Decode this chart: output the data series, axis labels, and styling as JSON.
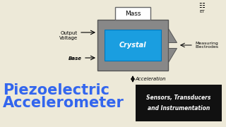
{
  "bg_color": "#ede9d8",
  "title_text1": "Piezoelectric",
  "title_text2": "Accelerometer",
  "title_color": "#3366ee",
  "crystal_color": "#1a9ee0",
  "mass_box_color": "#ffffff",
  "mass_border_color": "#666666",
  "sensor_box_color": "#111111",
  "sensor_text_color": "#ffffff",
  "sensor_text1": "Sensors, Transducers",
  "sensor_text2": "and Instrumentation",
  "label_output_voltage": "Output\nVoltage",
  "label_base": "Base",
  "label_mass": "Mass",
  "label_crystal": "Crystal",
  "label_measuring": "Measuring\nElectrodes",
  "label_acceleration": "Acceleration",
  "diagram_gray": "#888888",
  "diagram_dark": "#555555",
  "diagram_mid": "#777777"
}
